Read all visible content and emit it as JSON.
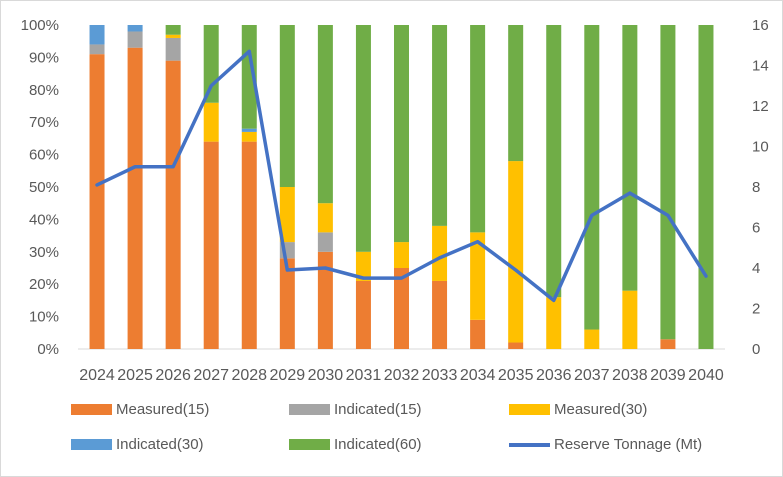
{
  "chart_data": {
    "type": "bar",
    "stacked": "percent",
    "categories": [
      "2024",
      "2025",
      "2026",
      "2027",
      "2028",
      "2029",
      "2030",
      "2031",
      "2032",
      "2033",
      "2034",
      "2035",
      "2036",
      "2037",
      "2038",
      "2039",
      "2040"
    ],
    "series": [
      {
        "name": "Measured(15)",
        "color": "#ed7d31",
        "values": [
          91,
          93,
          89,
          64,
          64,
          28,
          30,
          21,
          25,
          21,
          9,
          2,
          0,
          0,
          0,
          3,
          0
        ]
      },
      {
        "name": "Indicated(15)",
        "color": "#a5a5a5",
        "values": [
          3,
          5,
          7,
          0,
          0,
          5,
          6,
          0,
          0,
          0,
          0,
          0,
          0,
          0,
          0,
          0,
          0
        ]
      },
      {
        "name": "Measured(30)",
        "color": "#ffc000",
        "values": [
          0,
          0,
          1,
          12,
          3,
          17,
          9,
          9,
          8,
          17,
          27,
          56,
          16,
          6,
          18,
          0,
          0
        ]
      },
      {
        "name": "Indicated(30)",
        "color": "#5b9bd5",
        "values": [
          6,
          2,
          0,
          0,
          1,
          0,
          0,
          0,
          0,
          0,
          0,
          0,
          0,
          0,
          0,
          0,
          0
        ]
      },
      {
        "name": "Indicated(60)",
        "color": "#70ad47",
        "values": [
          0,
          0,
          3,
          24,
          32,
          50,
          55,
          70,
          67,
          62,
          64,
          42,
          84,
          94,
          82,
          97,
          100
        ]
      }
    ],
    "line_series": {
      "name": "Reserve Tonnage (Mt)",
      "color": "#4472c4",
      "axis": "right",
      "values": [
        8.1,
        9.0,
        9.0,
        13.0,
        14.7,
        3.9,
        4.0,
        3.5,
        3.5,
        4.5,
        5.3,
        3.9,
        2.4,
        6.6,
        7.7,
        6.6,
        3.6
      ]
    },
    "y_left": {
      "ticks": [
        "0%",
        "10%",
        "20%",
        "30%",
        "40%",
        "50%",
        "60%",
        "70%",
        "80%",
        "90%",
        "100%"
      ],
      "ylim": [
        0,
        100
      ]
    },
    "y_right": {
      "ticks": [
        "0",
        "2",
        "4",
        "6",
        "8",
        "10",
        "12",
        "14",
        "16"
      ],
      "ylim": [
        0,
        16
      ]
    },
    "legend": {
      "position": "bottom"
    },
    "grid": false
  }
}
